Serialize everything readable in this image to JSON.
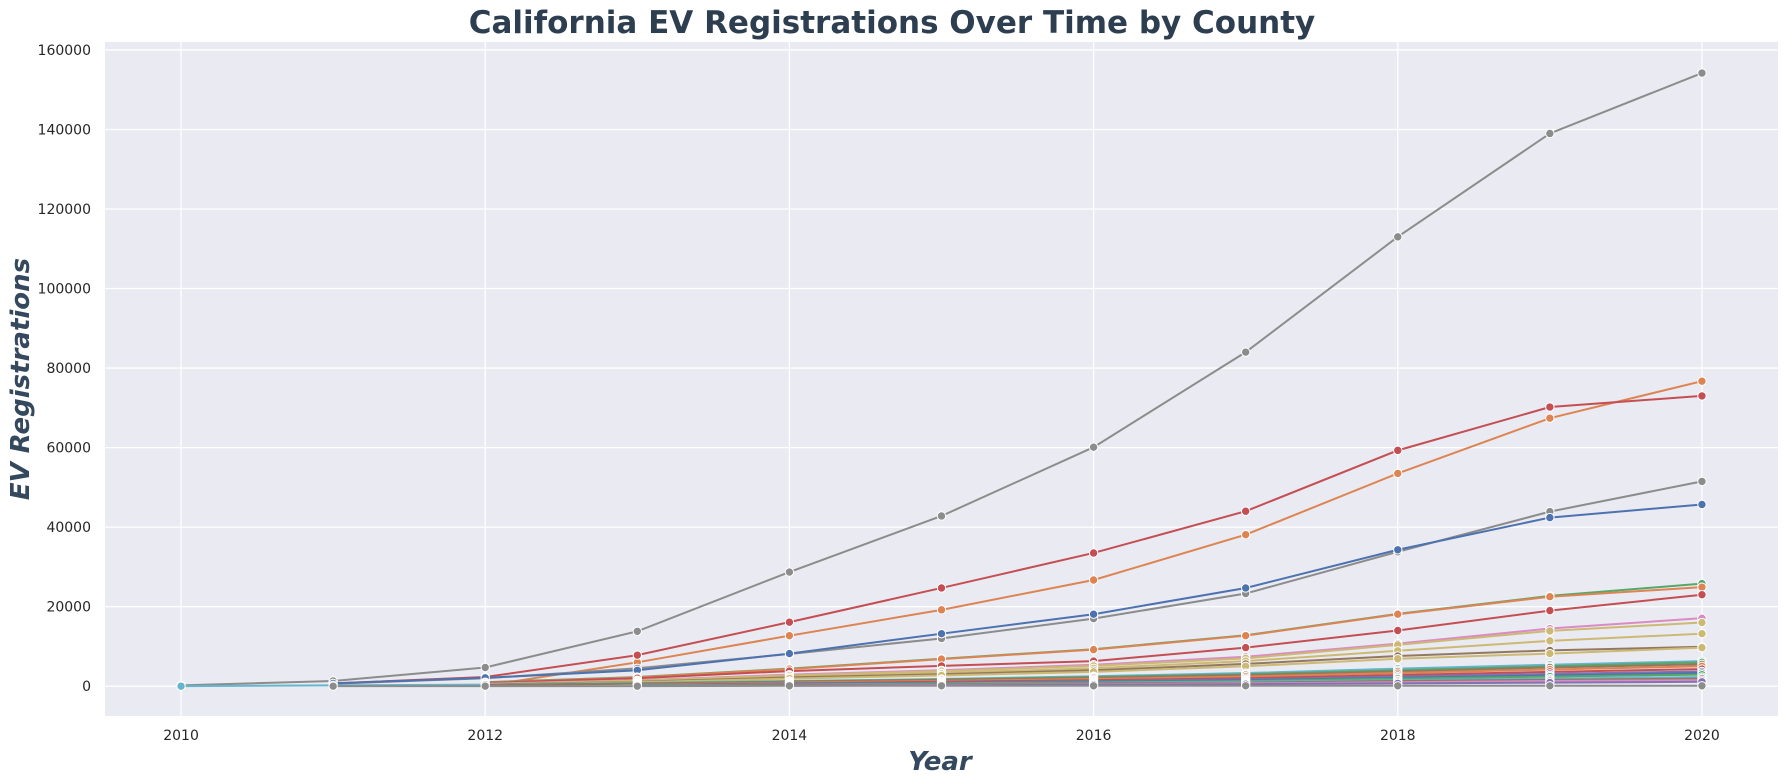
{
  "chart_data": {
    "type": "line",
    "title": "California EV Registrations Over Time by County",
    "xlabel": "Year",
    "ylabel": "EV Registrations",
    "x": [
      2010,
      2011,
      2012,
      2013,
      2014,
      2015,
      2016,
      2017,
      2018,
      2019,
      2020
    ],
    "xlim": [
      2009.5,
      2020.5
    ],
    "ylim": [
      -7500,
      162000
    ],
    "x_ticks": [
      2010,
      2012,
      2014,
      2016,
      2018,
      2020
    ],
    "y_ticks": [
      0,
      20000,
      40000,
      60000,
      80000,
      100000,
      120000,
      140000,
      160000
    ],
    "grid": true,
    "background": "#eaeaf2",
    "legend": "none",
    "series": [
      {
        "color": "#8c8c8c",
        "values": [
          200,
          1300,
          4700,
          13800,
          28700,
          42800,
          60100,
          84000,
          113000,
          139000,
          154200
        ]
      },
      {
        "color": "#dd8452",
        "values": [
          null,
          null,
          100,
          6000,
          12700,
          19200,
          26700,
          38100,
          53500,
          67400,
          76700
        ]
      },
      {
        "color": "#c44e52",
        "values": [
          null,
          700,
          2300,
          7800,
          16100,
          24700,
          33500,
          44000,
          59300,
          70200,
          73000
        ]
      },
      {
        "color": "#8c8c8c",
        "values": [
          null,
          600,
          2000,
          4500,
          8100,
          12000,
          17000,
          23300,
          33800,
          43900,
          51500
        ]
      },
      {
        "color": "#4c72b0",
        "values": [
          null,
          700,
          2100,
          4000,
          8200,
          13200,
          18100,
          24700,
          34300,
          42400,
          45700
        ]
      },
      {
        "color": "#55a868",
        "values": [
          null,
          null,
          1000,
          2300,
          4400,
          6900,
          9300,
          12800,
          18200,
          22700,
          25800
        ]
      },
      {
        "color": "#dd8452",
        "values": [
          null,
          null,
          900,
          2200,
          4300,
          6800,
          9200,
          12700,
          18100,
          22500,
          24900
        ]
      },
      {
        "color": "#c44e52",
        "values": [
          null,
          null,
          800,
          2000,
          3800,
          5100,
          6300,
          9700,
          14000,
          19000,
          23000
        ]
      },
      {
        "color": "#da8bc3",
        "values": [
          null,
          null,
          600,
          1500,
          2900,
          4000,
          5400,
          7400,
          10700,
          14500,
          17100
        ]
      },
      {
        "color": "#ccb974",
        "values": [
          null,
          null,
          500,
          1400,
          2700,
          3800,
          5100,
          7000,
          10400,
          13900,
          16000
        ]
      },
      {
        "color": "#ccb974",
        "values": [
          null,
          null,
          400,
          1200,
          2300,
          3300,
          4500,
          6300,
          8900,
          11400,
          13200
        ]
      },
      {
        "color": "#937860",
        "values": [
          null,
          null,
          400,
          1100,
          2200,
          3000,
          4000,
          5600,
          7600,
          9000,
          9900
        ]
      },
      {
        "color": "#ccb974",
        "values": [
          null,
          null,
          300,
          1000,
          1900,
          2700,
          3600,
          5000,
          6900,
          8200,
          9700
        ]
      },
      {
        "color": "#64b5cd",
        "values": [
          0,
          200,
          400,
          800,
          1300,
          1800,
          2500,
          3300,
          4400,
          5400,
          6300
        ]
      },
      {
        "color": "#55a868",
        "values": [
          null,
          null,
          300,
          700,
          1200,
          1700,
          2300,
          3000,
          4000,
          5000,
          6000
        ]
      },
      {
        "color": "#937860",
        "values": [
          null,
          null,
          300,
          600,
          1100,
          1600,
          2100,
          2800,
          3700,
          4700,
          5500
        ]
      },
      {
        "color": "#dd8452",
        "values": [
          null,
          null,
          null,
          400,
          900,
          1300,
          1800,
          2400,
          3300,
          4200,
          5000
        ]
      },
      {
        "color": "#c44e52",
        "values": [
          null,
          null,
          null,
          300,
          700,
          1100,
          1500,
          2000,
          2800,
          3600,
          4300
        ]
      },
      {
        "color": "#8172b3",
        "values": [
          null,
          null,
          null,
          300,
          600,
          900,
          1300,
          1700,
          2400,
          3100,
          3700
        ]
      },
      {
        "color": "#4c72b0",
        "values": [
          null,
          null,
          null,
          200,
          500,
          800,
          1100,
          1500,
          2100,
          2700,
          3300
        ]
      },
      {
        "color": "#55a868",
        "values": [
          null,
          null,
          null,
          200,
          400,
          700,
          1000,
          1300,
          1900,
          2400,
          2900
        ]
      },
      {
        "color": "#64b5cd",
        "values": [
          null,
          null,
          null,
          200,
          400,
          600,
          800,
          1100,
          1500,
          1900,
          2300
        ]
      },
      {
        "color": "#937860",
        "values": [
          null,
          null,
          null,
          100,
          300,
          500,
          700,
          900,
          1300,
          1600,
          1900
        ]
      },
      {
        "color": "#da8bc3",
        "values": [
          null,
          null,
          null,
          null,
          100,
          300,
          500,
          700,
          1000,
          1300,
          1500
        ]
      },
      {
        "color": "#8172b3",
        "values": [
          null,
          null,
          null,
          null,
          100,
          200,
          400,
          500,
          700,
          900,
          1100
        ]
      },
      {
        "color": "#8c8c8c",
        "values": [
          null,
          0,
          0,
          0,
          100,
          100,
          100,
          100,
          100,
          100,
          100
        ]
      }
    ]
  }
}
